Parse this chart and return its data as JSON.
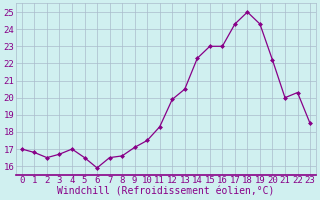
{
  "x": [
    0,
    1,
    2,
    3,
    4,
    5,
    6,
    7,
    8,
    9,
    10,
    11,
    12,
    13,
    14,
    15,
    16,
    17,
    18,
    19,
    20,
    21,
    22,
    23
  ],
  "y": [
    17.0,
    16.8,
    16.5,
    16.7,
    17.0,
    16.5,
    15.9,
    16.5,
    16.6,
    17.1,
    17.5,
    18.3,
    19.9,
    20.5,
    22.3,
    23.0,
    23.0,
    24.3,
    25.0,
    24.3,
    22.2,
    20.0,
    20.3,
    18.5
  ],
  "line_color": "#880088",
  "marker": "D",
  "markersize": 2.0,
  "linewidth": 0.9,
  "xlabel": "Windchill (Refroidissement éolien,°C)",
  "xlim": [
    -0.5,
    23.5
  ],
  "ylim": [
    15.5,
    25.5
  ],
  "yticks": [
    16,
    17,
    18,
    19,
    20,
    21,
    22,
    23,
    24,
    25
  ],
  "xticks": [
    0,
    1,
    2,
    3,
    4,
    5,
    6,
    7,
    8,
    9,
    10,
    11,
    12,
    13,
    14,
    15,
    16,
    17,
    18,
    19,
    20,
    21,
    22,
    23
  ],
  "background_color": "#d0f0f0",
  "grid_color": "#aabbcc",
  "tick_color": "#880088",
  "label_color": "#880088",
  "xlabel_fontsize": 7.0,
  "tick_fontsize": 6.5
}
